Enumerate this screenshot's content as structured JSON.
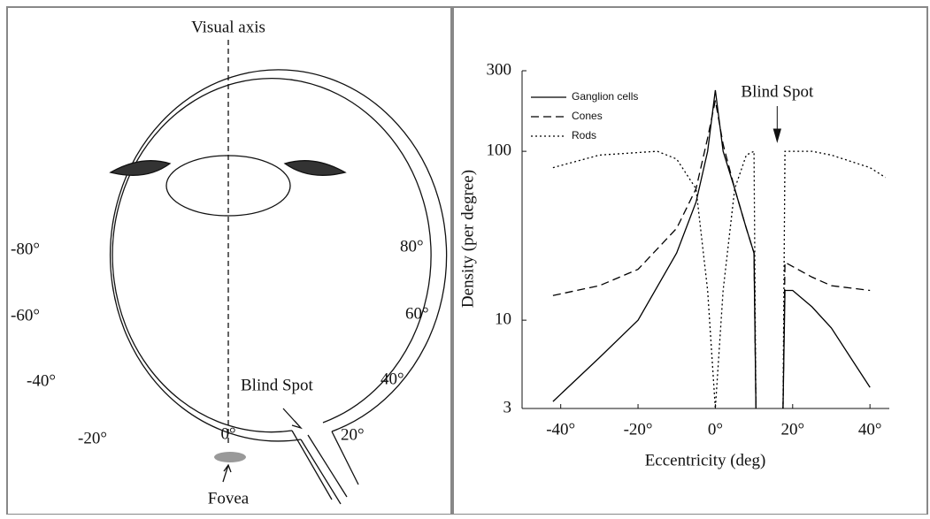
{
  "diagram": {
    "visual_axis_label": "Visual axis",
    "left_angles": [
      "-80°",
      "-60°",
      "-40°",
      "-20°"
    ],
    "right_angles": [
      "80°",
      "60°",
      "40°",
      "20°"
    ],
    "center_angle": "0°",
    "blind_spot_label": "Blind Spot",
    "fovea_label": "Fovea"
  },
  "chart_data": {
    "type": "line",
    "annotation": "Blind Spot",
    "annotation_x": 16,
    "xlabel": "Eccentricity (deg)",
    "ylabel": "Density (per degree)",
    "log_y": true,
    "legend": "upper left",
    "xlim": [
      -50,
      45
    ],
    "ylim": [
      3,
      300
    ],
    "xticks": [
      {
        "value": -40,
        "label": "-40°"
      },
      {
        "value": -20,
        "label": "-20°"
      },
      {
        "value": 0,
        "label": "0°"
      },
      {
        "value": 20,
        "label": "20°"
      },
      {
        "value": 40,
        "label": "40°"
      }
    ],
    "yticks": [
      3,
      10,
      100,
      300
    ],
    "series": [
      {
        "name": "Ganglion cells",
        "color": "#000000",
        "dash": "solid",
        "x": [
          -42,
          -30,
          -20,
          -10,
          -5,
          -2,
          0,
          2,
          5,
          8,
          10,
          10.5,
          14,
          17.5,
          18,
          20,
          25,
          30,
          35,
          40
        ],
        "values": [
          3.3,
          6,
          10,
          25,
          50,
          100,
          230,
          100,
          60,
          35,
          25,
          3,
          null,
          3,
          15,
          15,
          12,
          9,
          6,
          4
        ]
      },
      {
        "name": "Cones",
        "color": "#000000",
        "dash": "dashed",
        "x": [
          -42,
          -30,
          -20,
          -10,
          -5,
          -2,
          0,
          2,
          5,
          8,
          10,
          10.5,
          14,
          17.5,
          18,
          25,
          30,
          40
        ],
        "values": [
          14,
          16,
          20,
          35,
          60,
          120,
          200,
          110,
          60,
          35,
          25,
          3,
          null,
          3,
          22,
          18,
          16,
          15
        ]
      },
      {
        "name": "Rods",
        "color": "#000000",
        "dash": "dotted",
        "x": [
          -42,
          -30,
          -15,
          -10,
          -5,
          -2,
          0,
          2,
          5,
          8,
          10,
          10.5,
          14,
          17.5,
          18,
          25,
          30,
          40,
          44
        ],
        "values": [
          80,
          95,
          100,
          90,
          60,
          15,
          3,
          15,
          60,
          95,
          100,
          3,
          null,
          3,
          100,
          100,
          95,
          80,
          70
        ]
      }
    ]
  }
}
